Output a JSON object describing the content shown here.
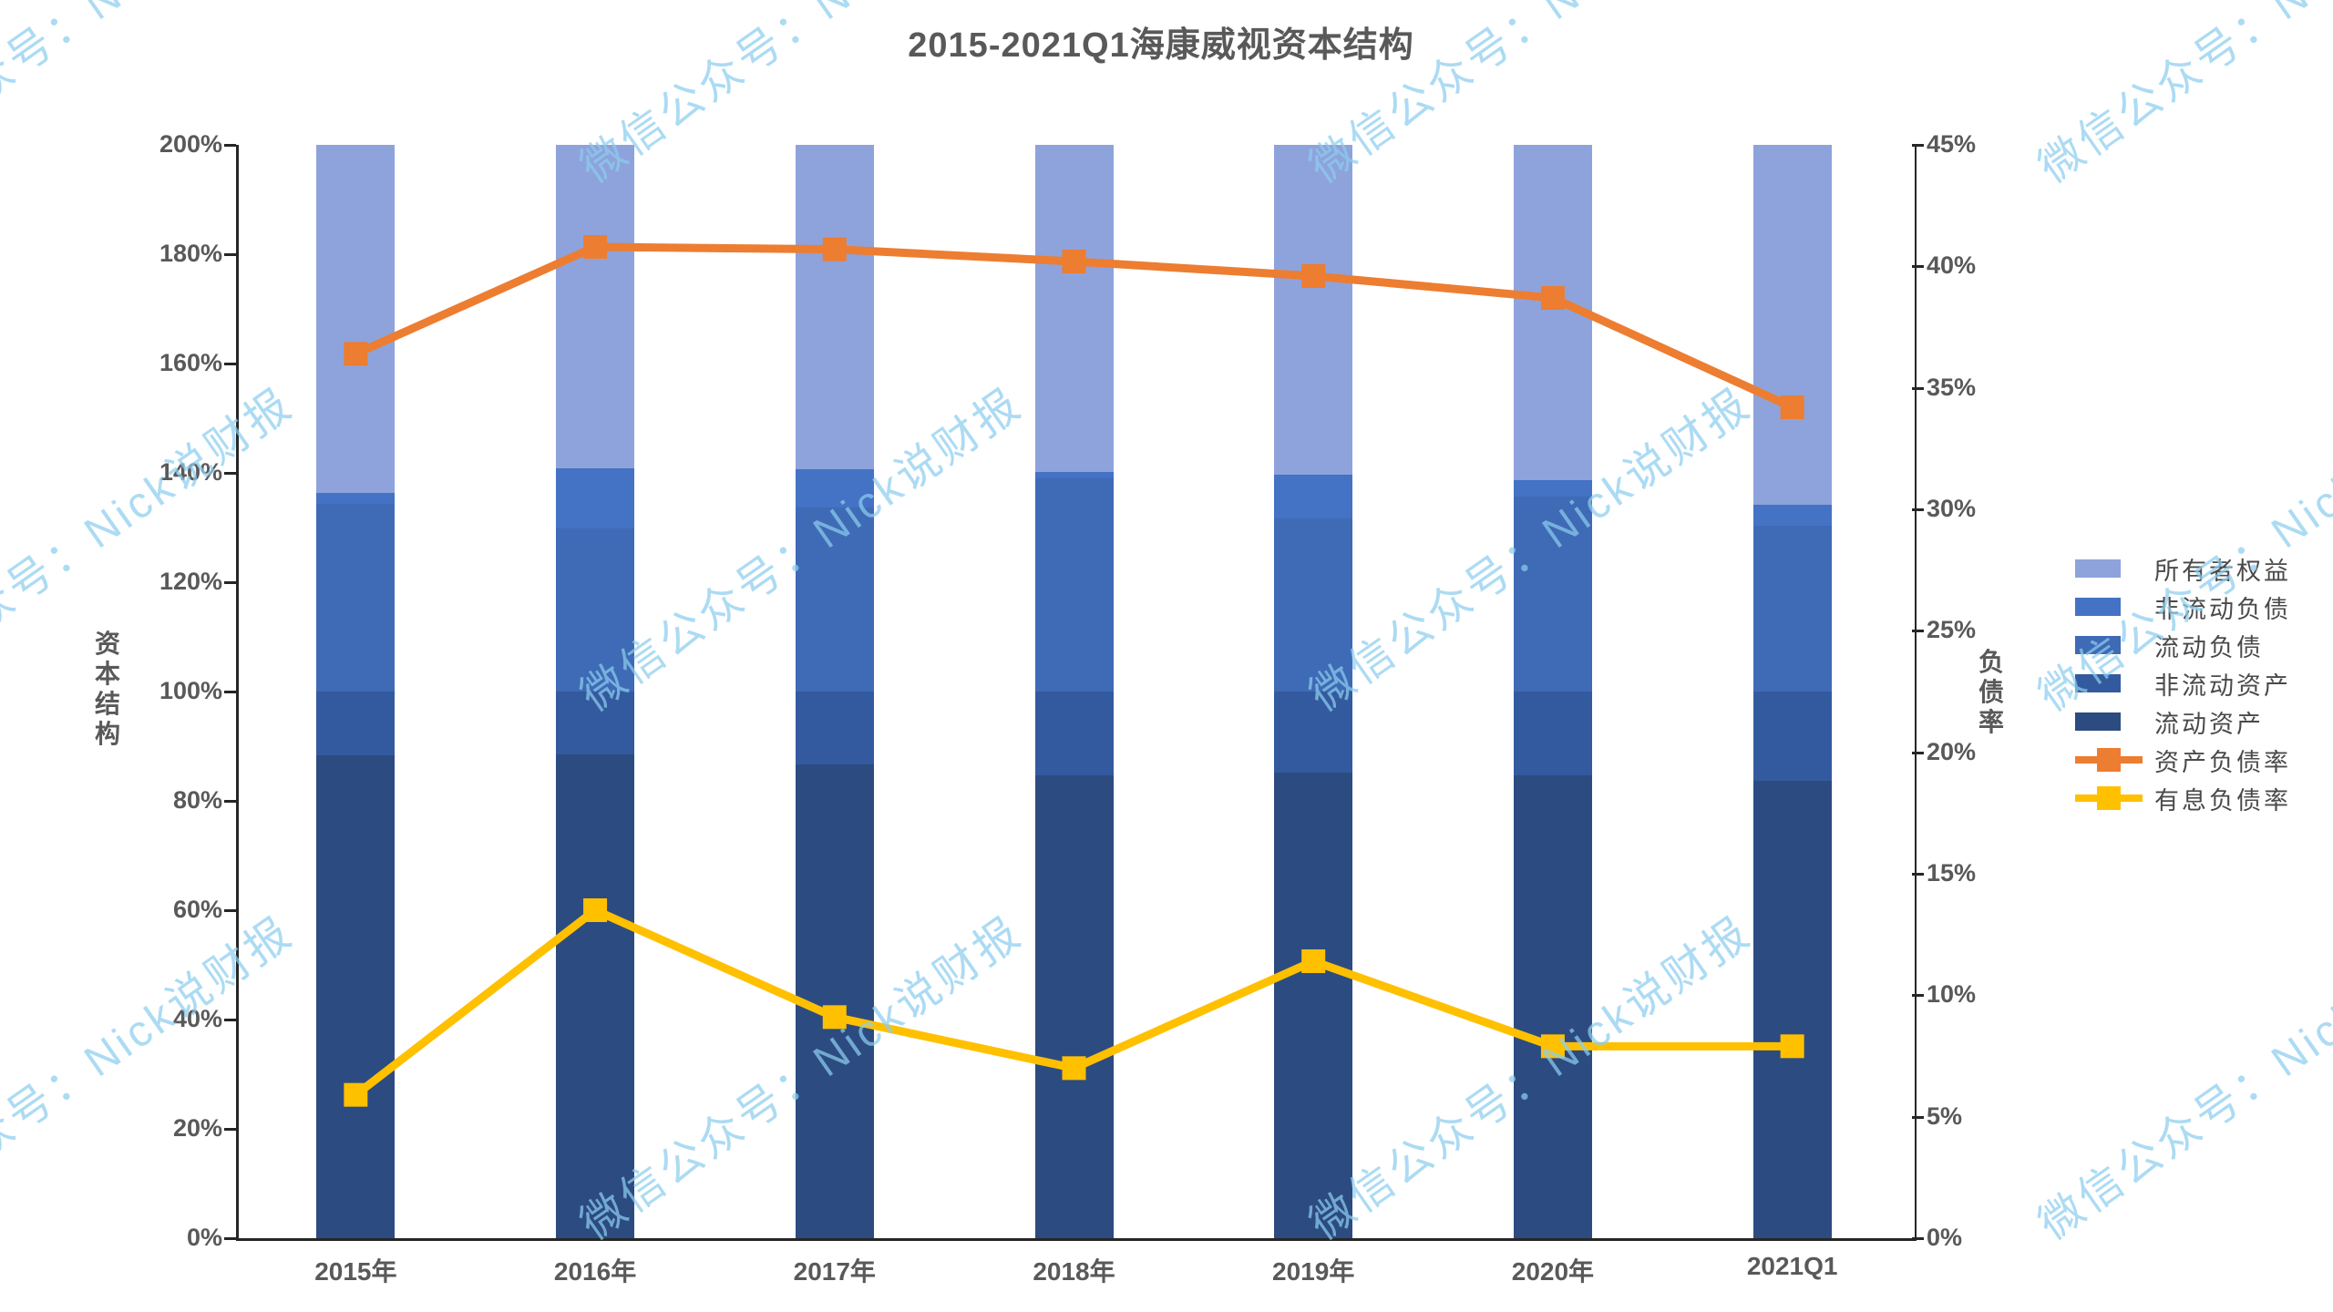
{
  "title": "2015-2021Q1海康威视资本结构",
  "watermark": {
    "text": "微信公众号：Nick说财报",
    "color": "#8ccdee"
  },
  "left_axis": {
    "title": "资本结构",
    "min": 0,
    "max": 200,
    "step": 20,
    "unit": "%"
  },
  "right_axis": {
    "title": "负债率",
    "min": 0,
    "max": 45,
    "step": 5,
    "unit": "%"
  },
  "chart_data": {
    "type": "bar",
    "subtype": "stacked-bar with line overlay (dual axis)",
    "title": "2015-2021Q1海康威视资本结构",
    "categories": [
      "2015年",
      "2016年",
      "2017年",
      "2018年",
      "2019年",
      "2020年",
      "2021Q1"
    ],
    "bar_axis": "left",
    "bar_unit": "%",
    "series": [
      {
        "name": "流动资产",
        "type": "bar",
        "color": "#2C4B80",
        "values": [
          88.3,
          88.5,
          86.6,
          84.7,
          85.2,
          84.6,
          83.7
        ]
      },
      {
        "name": "非流动资产",
        "type": "bar",
        "color": "#335A9E",
        "values": [
          11.7,
          11.5,
          13.4,
          15.3,
          14.8,
          15.4,
          16.3
        ]
      },
      {
        "name": "流动负债",
        "type": "bar",
        "color": "#3F6AB5",
        "values": [
          34.4,
          29.8,
          33.7,
          39.0,
          31.6,
          35.6,
          30.4
        ]
      },
      {
        "name": "非流动负债",
        "type": "bar",
        "color": "#4472C4",
        "values": [
          2.0,
          11.0,
          7.0,
          1.2,
          8.0,
          3.1,
          3.8
        ]
      },
      {
        "name": "所有者权益",
        "type": "bar",
        "color": "#8EA3DB",
        "values": [
          63.6,
          59.2,
          59.3,
          59.8,
          60.4,
          61.3,
          65.8
        ]
      }
    ],
    "line_series": [
      {
        "name": "资产负债率",
        "type": "line",
        "axis": "right",
        "color": "#ED7D31",
        "values": [
          36.4,
          40.8,
          40.7,
          40.2,
          39.6,
          38.7,
          34.2
        ]
      },
      {
        "name": "有息负债率",
        "type": "line",
        "axis": "right",
        "color": "#FFC000",
        "values": [
          5.9,
          13.5,
          9.1,
          7.0,
          11.4,
          7.9,
          7.9
        ]
      }
    ],
    "ylim_left": [
      0,
      200
    ],
    "ylim_right": [
      0,
      45
    ],
    "grid": false,
    "legend_position": "right"
  },
  "legend": [
    {
      "name": "所有者权益",
      "kind": "patch",
      "color": "#8EA3DB"
    },
    {
      "name": "非流动负债",
      "kind": "patch",
      "color": "#4472C4"
    },
    {
      "name": "流动负债",
      "kind": "patch",
      "color": "#3F6AB5"
    },
    {
      "name": "非流动资产",
      "kind": "patch",
      "color": "#335A9E"
    },
    {
      "name": "流动资产",
      "kind": "patch",
      "color": "#2C4B80"
    },
    {
      "name": "资产负债率",
      "kind": "line",
      "color": "#ED7D31"
    },
    {
      "name": "有息负债率",
      "kind": "line",
      "color": "#FFC000"
    }
  ]
}
